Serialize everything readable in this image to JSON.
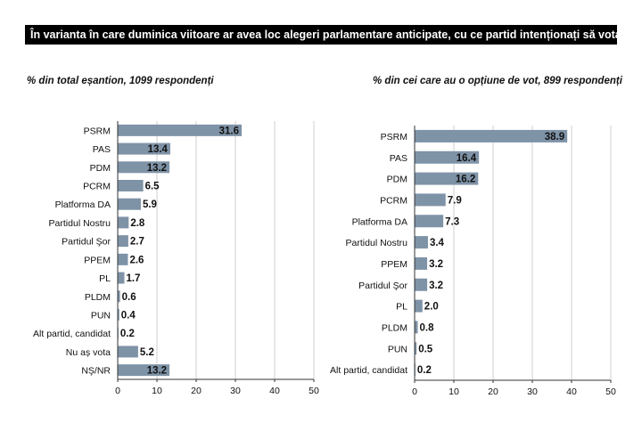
{
  "title": "În varianta în care duminica viitoare ar avea loc alegeri parlamentare anticipate, cu ce partid intenționați să votați?",
  "chart_data": [
    {
      "type": "bar",
      "orientation": "horizontal",
      "subtitle": "% din total eșantion, 1099 respondenți",
      "categories": [
        "PSRM",
        "PAS",
        "PDM",
        "PCRM",
        "Platforma DA",
        "Partidul Nostru",
        "Partidul Şor",
        "PPEM",
        "PL",
        "PLDM",
        "PUN",
        "Alt partid, candidat",
        "Nu aș vota",
        "NŞ/NR"
      ],
      "values": [
        31.6,
        13.4,
        13.2,
        6.5,
        5.9,
        2.8,
        2.7,
        2.6,
        1.7,
        0.6,
        0.4,
        0.2,
        5.2,
        13.2
      ],
      "value_labels": [
        "31.6",
        "13.4",
        "13.2",
        "6.5",
        "5.9",
        "2.8",
        "2.7",
        "2.6",
        "1.7",
        "0.6",
        "0.4",
        "0.2",
        "5.2",
        "13.2"
      ],
      "xlim": [
        0,
        50
      ],
      "ticks": [
        0,
        10,
        20,
        30,
        40,
        50
      ],
      "bar_color": "#7f93a7",
      "grid": true
    },
    {
      "type": "bar",
      "orientation": "horizontal",
      "subtitle": "% din cei care au o opțiune de vot, 899 respondenți",
      "categories": [
        "PSRM",
        "PAS",
        "PDM",
        "PCRM",
        "Platforma DA",
        "Partidul Nostru",
        "PPEM",
        "Partidul Şor",
        "PL",
        "PLDM",
        "PUN",
        "Alt partid, candidat"
      ],
      "values": [
        38.9,
        16.4,
        16.2,
        7.9,
        7.3,
        3.4,
        3.2,
        3.2,
        2.0,
        0.8,
        0.5,
        0.2
      ],
      "value_labels": [
        "38.9",
        "16.4",
        "16.2",
        "7.9",
        "7.3",
        "3.4",
        "3.2",
        "3.2",
        "2.0",
        "0.8",
        "0.5",
        "0.2"
      ],
      "xlim": [
        0,
        50
      ],
      "ticks": [
        0,
        10,
        20,
        30,
        40,
        50
      ],
      "bar_color": "#7f93a7",
      "grid": true
    }
  ]
}
